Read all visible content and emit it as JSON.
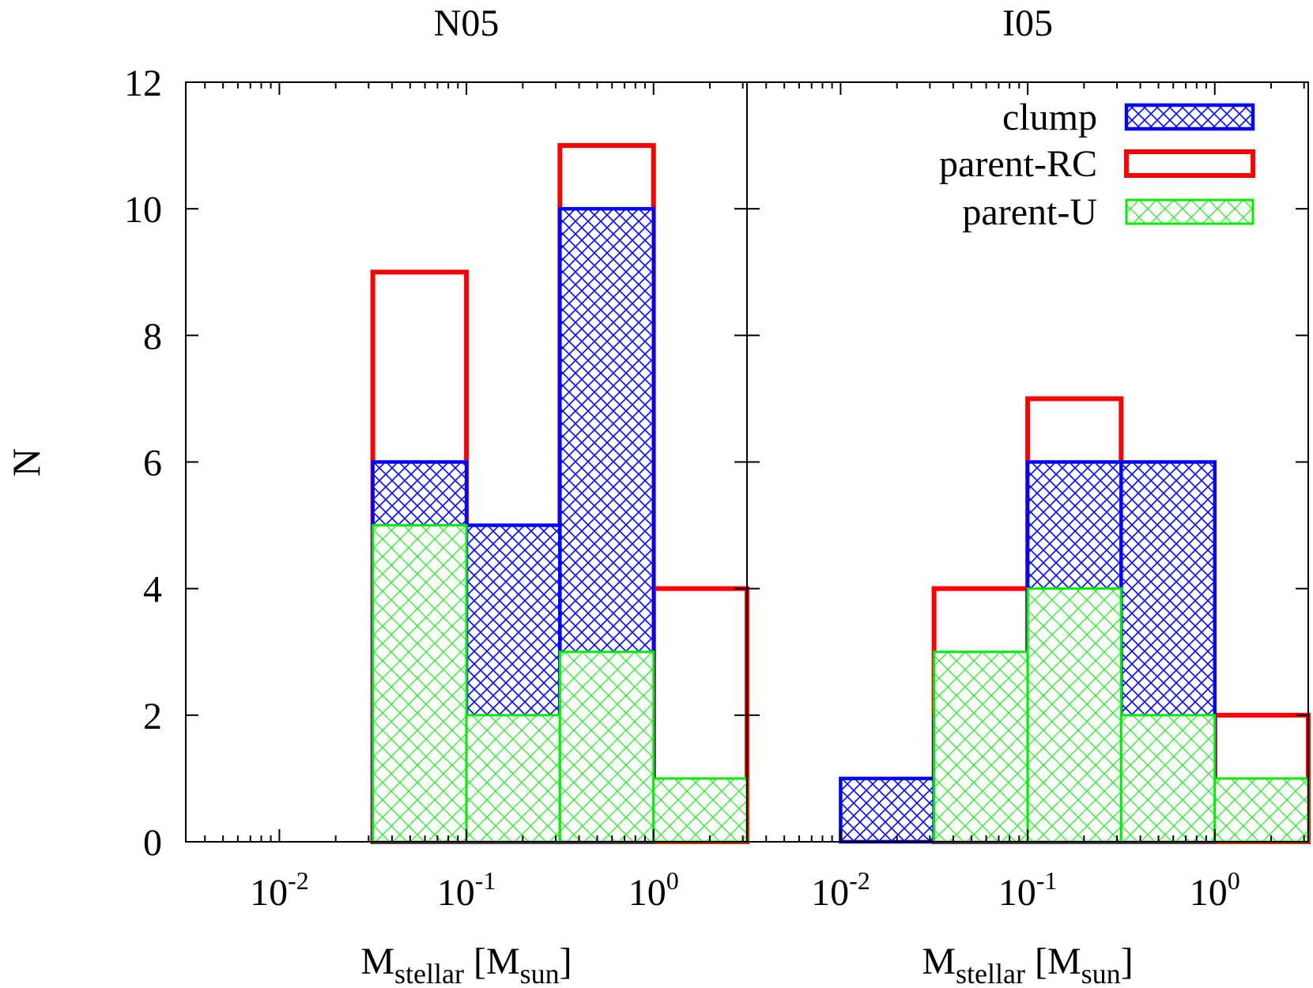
{
  "legend": {
    "position": "top-right",
    "entries": [
      {
        "series": "clump",
        "label": "clump"
      },
      {
        "series": "parent-RC",
        "label": "parent-RC"
      },
      {
        "series": "parent-U",
        "label": "parent-U"
      }
    ]
  },
  "styles": {
    "clump": {
      "color": "#0000ff",
      "pattern": "dense-crosshatch"
    },
    "parent-RC": {
      "color": "#ff0000",
      "pattern": "none"
    },
    "parent-U": {
      "color": "#00ee00",
      "pattern": "sparse-crosshatch"
    }
  },
  "chart_data": [
    {
      "type": "bar",
      "title": "N05",
      "xlabel": {
        "base": "M",
        "sub": "stellar",
        "mid": " [M",
        "sub2": "sun",
        "end": "]"
      },
      "ylabel": "N",
      "x_scale": "log",
      "xlim": [
        0.00316,
        3.16
      ],
      "ylim": [
        0,
        12
      ],
      "y_ticks": [
        0,
        2,
        4,
        6,
        8,
        10,
        12
      ],
      "x_ticks": [
        {
          "value": 0.01,
          "base": "10",
          "exp": "-2"
        },
        {
          "value": 0.1,
          "base": "10",
          "exp": "-1"
        },
        {
          "value": 1,
          "base": "10",
          "exp": "0"
        }
      ],
      "bin_edges": [
        0.0316,
        0.1,
        0.316,
        1,
        3.16
      ],
      "bin_labels_log10": [
        [
          -1.5,
          -1.0
        ],
        [
          -1.0,
          -0.5
        ],
        [
          -0.5,
          0.0
        ],
        [
          0.0,
          0.5
        ]
      ],
      "grid": false,
      "series": [
        {
          "name": "parent-RC",
          "values": [
            9,
            3,
            11,
            4
          ]
        },
        {
          "name": "clump",
          "values": [
            6,
            5,
            10,
            0
          ]
        },
        {
          "name": "parent-U",
          "values": [
            5,
            2,
            3,
            1
          ]
        }
      ]
    },
    {
      "type": "bar",
      "title": "I05",
      "xlabel": {
        "base": "M",
        "sub": "stellar",
        "mid": " [M",
        "sub2": "sun",
        "end": "]"
      },
      "ylabel": "",
      "x_scale": "log",
      "xlim": [
        0.00316,
        3.16
      ],
      "ylim": [
        0,
        12
      ],
      "y_ticks": [
        0,
        2,
        4,
        6,
        8,
        10,
        12
      ],
      "x_ticks": [
        {
          "value": 0.01,
          "base": "10",
          "exp": "-2"
        },
        {
          "value": 0.1,
          "base": "10",
          "exp": "-1"
        },
        {
          "value": 1,
          "base": "10",
          "exp": "0"
        }
      ],
      "bin_edges": [
        0.01,
        0.0316,
        0.1,
        0.316,
        1,
        3.16
      ],
      "grid": false,
      "series": [
        {
          "name": "parent-RC",
          "values": [
            0,
            4,
            7,
            2,
            2
          ]
        },
        {
          "name": "clump",
          "values": [
            1,
            2,
            6,
            6,
            0
          ]
        },
        {
          "name": "parent-U",
          "values": [
            0,
            3,
            4,
            2,
            1
          ]
        }
      ]
    }
  ]
}
